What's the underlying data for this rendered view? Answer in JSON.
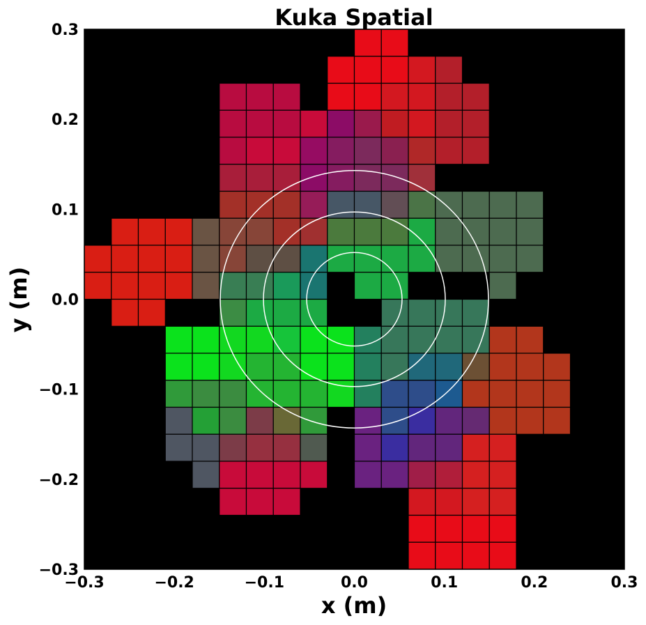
{
  "chart_data": {
    "type": "heatmap",
    "title": "Kuka Spatial",
    "xlabel": "x (m)",
    "ylabel": "y (m)",
    "xlim": [
      -0.3,
      0.3
    ],
    "ylim": [
      -0.3,
      0.3
    ],
    "x_ticks": [
      "−0.3",
      "−0.2",
      "−0.1",
      "0.0",
      "0.1",
      "0.2",
      "0.3"
    ],
    "y_ticks": [
      "0.3",
      "0.2",
      "0.1",
      "0.0",
      "−0.1",
      "−0.2",
      "−0.3"
    ],
    "background": "#000000",
    "cell_size_m": 0.03,
    "cells": [
      [
        0.0,
        0.27,
        "#e80c18"
      ],
      [
        0.03,
        0.27,
        "#e80c18"
      ],
      [
        -0.03,
        0.24,
        "#e80c18"
      ],
      [
        0.0,
        0.24,
        "#e80c18"
      ],
      [
        0.03,
        0.24,
        "#e80c18"
      ],
      [
        0.06,
        0.24,
        "#d31820"
      ],
      [
        0.09,
        0.24,
        "#b31f2a"
      ],
      [
        -0.15,
        0.21,
        "#b80c40"
      ],
      [
        -0.12,
        0.21,
        "#b80c40"
      ],
      [
        -0.09,
        0.21,
        "#b80c40"
      ],
      [
        -0.03,
        0.21,
        "#e80c18"
      ],
      [
        0.0,
        0.21,
        "#e80c18"
      ],
      [
        0.03,
        0.21,
        "#d31820"
      ],
      [
        0.06,
        0.21,
        "#d31820"
      ],
      [
        0.09,
        0.21,
        "#b31f2a"
      ],
      [
        0.12,
        0.21,
        "#b31f2a"
      ],
      [
        -0.15,
        0.18,
        "#b80c40"
      ],
      [
        -0.12,
        0.18,
        "#b80c40"
      ],
      [
        -0.09,
        0.18,
        "#b80c40"
      ],
      [
        -0.06,
        0.18,
        "#c80b3a"
      ],
      [
        -0.03,
        0.18,
        "#8c0c66"
      ],
      [
        0.0,
        0.18,
        "#9a1a4c"
      ],
      [
        0.03,
        0.18,
        "#c01c22"
      ],
      [
        0.06,
        0.18,
        "#d31820"
      ],
      [
        0.09,
        0.18,
        "#b31f2a"
      ],
      [
        0.12,
        0.18,
        "#b31f2a"
      ],
      [
        -0.15,
        0.15,
        "#b80c40"
      ],
      [
        -0.12,
        0.15,
        "#c80b3a"
      ],
      [
        -0.09,
        0.15,
        "#c80b3a"
      ],
      [
        -0.06,
        0.15,
        "#960c62"
      ],
      [
        -0.03,
        0.15,
        "#851c60"
      ],
      [
        0.0,
        0.15,
        "#7c2a5c"
      ],
      [
        0.03,
        0.15,
        "#8a2050"
      ],
      [
        0.06,
        0.15,
        "#b02828"
      ],
      [
        0.09,
        0.15,
        "#b31f2a"
      ],
      [
        0.12,
        0.15,
        "#b31f2a"
      ],
      [
        -0.15,
        0.12,
        "#a81e3a"
      ],
      [
        -0.12,
        0.12,
        "#a81e3a"
      ],
      [
        -0.09,
        0.12,
        "#a81e3a"
      ],
      [
        -0.06,
        0.12,
        "#8c0c66"
      ],
      [
        -0.03,
        0.12,
        "#851c60"
      ],
      [
        0.0,
        0.12,
        "#7c2a5c"
      ],
      [
        0.03,
        0.12,
        "#7c2a5c"
      ],
      [
        0.06,
        0.12,
        "#a0303a"
      ],
      [
        -0.15,
        0.09,
        "#a33028"
      ],
      [
        -0.12,
        0.09,
        "#a33028"
      ],
      [
        -0.09,
        0.09,
        "#a33028"
      ],
      [
        -0.06,
        0.09,
        "#961c58"
      ],
      [
        -0.03,
        0.09,
        "#475766"
      ],
      [
        0.0,
        0.09,
        "#475766"
      ],
      [
        0.03,
        0.09,
        "#624e55"
      ],
      [
        0.06,
        0.09,
        "#4b7447"
      ],
      [
        0.09,
        0.09,
        "#4d6b50"
      ],
      [
        0.12,
        0.09,
        "#4d6b50"
      ],
      [
        0.15,
        0.09,
        "#4d6b50"
      ],
      [
        0.18,
        0.09,
        "#4d6b50"
      ],
      [
        -0.27,
        0.06,
        "#d91e14"
      ],
      [
        -0.24,
        0.06,
        "#d91e14"
      ],
      [
        -0.21,
        0.06,
        "#d91e14"
      ],
      [
        -0.18,
        0.06,
        "#6a5444"
      ],
      [
        -0.15,
        0.06,
        "#874538"
      ],
      [
        -0.12,
        0.06,
        "#874538"
      ],
      [
        -0.09,
        0.06,
        "#a33028"
      ],
      [
        -0.06,
        0.06,
        "#a03030"
      ],
      [
        -0.03,
        0.06,
        "#4b7a3d"
      ],
      [
        0.0,
        0.06,
        "#4b7a3d"
      ],
      [
        0.03,
        0.06,
        "#4b7a3d"
      ],
      [
        0.06,
        0.06,
        "#1caa44"
      ],
      [
        0.09,
        0.06,
        "#4d6b50"
      ],
      [
        0.12,
        0.06,
        "#4d6b50"
      ],
      [
        0.15,
        0.06,
        "#4d6b50"
      ],
      [
        0.18,
        0.06,
        "#4d6b50"
      ],
      [
        -0.3,
        0.03,
        "#d91e14"
      ],
      [
        -0.27,
        0.03,
        "#d91e14"
      ],
      [
        -0.24,
        0.03,
        "#d91e14"
      ],
      [
        -0.21,
        0.03,
        "#d91e14"
      ],
      [
        -0.18,
        0.03,
        "#6a5444"
      ],
      [
        -0.15,
        0.03,
        "#874538"
      ],
      [
        -0.12,
        0.03,
        "#5e4f44"
      ],
      [
        -0.09,
        0.03,
        "#5e4f44"
      ],
      [
        -0.06,
        0.03,
        "#1a7570"
      ],
      [
        -0.03,
        0.03,
        "#1caa44"
      ],
      [
        0.0,
        0.03,
        "#1caa44"
      ],
      [
        0.03,
        0.03,
        "#1caa44"
      ],
      [
        0.06,
        0.03,
        "#1caa44"
      ],
      [
        0.09,
        0.03,
        "#4d6b50"
      ],
      [
        0.12,
        0.03,
        "#4d6b50"
      ],
      [
        0.15,
        0.03,
        "#4d6b50"
      ],
      [
        0.18,
        0.03,
        "#4d6b50"
      ],
      [
        -0.3,
        0.0,
        "#d91e14"
      ],
      [
        -0.27,
        0.0,
        "#d91e14"
      ],
      [
        -0.24,
        0.0,
        "#d91e14"
      ],
      [
        -0.21,
        0.0,
        "#d91e14"
      ],
      [
        -0.18,
        0.0,
        "#6a5444"
      ],
      [
        -0.15,
        0.0,
        "#397e54"
      ],
      [
        -0.12,
        0.0,
        "#397e54"
      ],
      [
        -0.09,
        0.0,
        "#1a9a5a"
      ],
      [
        -0.06,
        0.0,
        "#1a7570"
      ],
      [
        0.0,
        0.0,
        "#1caa44"
      ],
      [
        0.03,
        0.0,
        "#1caa44"
      ],
      [
        0.15,
        0.0,
        "#4d6b50"
      ],
      [
        -0.27,
        -0.03,
        "#d91e14"
      ],
      [
        -0.24,
        -0.03,
        "#d91e14"
      ],
      [
        -0.15,
        -0.03,
        "#3c8c44"
      ],
      [
        -0.12,
        -0.03,
        "#1caa44"
      ],
      [
        -0.09,
        -0.03,
        "#1caa44"
      ],
      [
        -0.06,
        -0.03,
        "#1caa44"
      ],
      [
        0.03,
        -0.03,
        "#37775a"
      ],
      [
        0.06,
        -0.03,
        "#37775a"
      ],
      [
        0.09,
        -0.03,
        "#37775a"
      ],
      [
        0.12,
        -0.03,
        "#37775a"
      ],
      [
        -0.21,
        -0.06,
        "#0be21c"
      ],
      [
        -0.18,
        -0.06,
        "#0be21c"
      ],
      [
        -0.15,
        -0.06,
        "#12d820"
      ],
      [
        -0.12,
        -0.06,
        "#12d820"
      ],
      [
        -0.09,
        -0.06,
        "#16c43a"
      ],
      [
        -0.06,
        -0.06,
        "#0be21c"
      ],
      [
        -0.03,
        -0.06,
        "#0be21c"
      ],
      [
        0.0,
        -0.06,
        "#23805e"
      ],
      [
        0.03,
        -0.06,
        "#37775a"
      ],
      [
        0.06,
        -0.06,
        "#37775a"
      ],
      [
        0.09,
        -0.06,
        "#37775a"
      ],
      [
        0.12,
        -0.06,
        "#37775a"
      ],
      [
        0.15,
        -0.06,
        "#b2361c"
      ],
      [
        0.18,
        -0.06,
        "#b2361c"
      ],
      [
        -0.21,
        -0.09,
        "#0be21c"
      ],
      [
        -0.18,
        -0.09,
        "#0be21c"
      ],
      [
        -0.15,
        -0.09,
        "#12d820"
      ],
      [
        -0.12,
        -0.09,
        "#24b432"
      ],
      [
        -0.09,
        -0.09,
        "#24b432"
      ],
      [
        -0.06,
        -0.09,
        "#0be21c"
      ],
      [
        -0.03,
        -0.09,
        "#0be21c"
      ],
      [
        0.0,
        -0.09,
        "#23805e"
      ],
      [
        0.03,
        -0.09,
        "#37775a"
      ],
      [
        0.06,
        -0.09,
        "#20687a"
      ],
      [
        0.09,
        -0.09,
        "#20687a"
      ],
      [
        0.12,
        -0.09,
        "#6c5034"
      ],
      [
        0.15,
        -0.09,
        "#b2361c"
      ],
      [
        0.18,
        -0.09,
        "#b2361c"
      ],
      [
        0.21,
        -0.09,
        "#b2361c"
      ],
      [
        -0.21,
        -0.12,
        "#309a3a"
      ],
      [
        -0.18,
        -0.12,
        "#3b8c40"
      ],
      [
        -0.15,
        -0.12,
        "#3b8c40"
      ],
      [
        -0.12,
        -0.12,
        "#24b432"
      ],
      [
        -0.09,
        -0.12,
        "#24b432"
      ],
      [
        -0.06,
        -0.12,
        "#24b432"
      ],
      [
        -0.03,
        -0.12,
        "#12d820"
      ],
      [
        0.0,
        -0.12,
        "#23805e"
      ],
      [
        0.03,
        -0.12,
        "#2e4d8a"
      ],
      [
        0.06,
        -0.12,
        "#2e4d8a"
      ],
      [
        0.09,
        -0.12,
        "#1d5a90"
      ],
      [
        0.12,
        -0.12,
        "#b2361c"
      ],
      [
        0.15,
        -0.12,
        "#b2361c"
      ],
      [
        0.18,
        -0.12,
        "#b2361c"
      ],
      [
        0.21,
        -0.12,
        "#b2361c"
      ],
      [
        -0.21,
        -0.15,
        "#4f5662"
      ],
      [
        -0.18,
        -0.15,
        "#24a036"
      ],
      [
        -0.15,
        -0.15,
        "#3b8c40"
      ],
      [
        -0.12,
        -0.15,
        "#7c3c48"
      ],
      [
        -0.09,
        -0.15,
        "#696836"
      ],
      [
        -0.06,
        -0.15,
        "#309a3a"
      ],
      [
        0.0,
        -0.15,
        "#6a2280"
      ],
      [
        0.03,
        -0.15,
        "#2e4d8a"
      ],
      [
        0.06,
        -0.15,
        "#3a2da0"
      ],
      [
        0.09,
        -0.15,
        "#62267c"
      ],
      [
        0.12,
        -0.15,
        "#652a72"
      ],
      [
        0.15,
        -0.15,
        "#b2361c"
      ],
      [
        0.18,
        -0.15,
        "#b2361c"
      ],
      [
        0.21,
        -0.15,
        "#b2361c"
      ],
      [
        -0.21,
        -0.18,
        "#4f5662"
      ],
      [
        -0.18,
        -0.18,
        "#4f5662"
      ],
      [
        -0.15,
        -0.18,
        "#7c3c48"
      ],
      [
        -0.12,
        -0.18,
        "#963040"
      ],
      [
        -0.09,
        -0.18,
        "#963040"
      ],
      [
        -0.06,
        -0.18,
        "#505a50"
      ],
      [
        0.0,
        -0.18,
        "#6a2280"
      ],
      [
        0.03,
        -0.18,
        "#3a2da0"
      ],
      [
        0.06,
        -0.18,
        "#62267c"
      ],
      [
        0.09,
        -0.18,
        "#62267c"
      ],
      [
        0.12,
        -0.18,
        "#d52020"
      ],
      [
        0.15,
        -0.18,
        "#d52020"
      ],
      [
        -0.18,
        -0.21,
        "#4f5662"
      ],
      [
        -0.15,
        -0.21,
        "#c80b3a"
      ],
      [
        -0.12,
        -0.21,
        "#c80b3a"
      ],
      [
        -0.09,
        -0.21,
        "#c80b3a"
      ],
      [
        -0.06,
        -0.21,
        "#c80b3a"
      ],
      [
        0.0,
        -0.21,
        "#6a2280"
      ],
      [
        0.03,
        -0.21,
        "#6a2280"
      ],
      [
        0.06,
        -0.21,
        "#a01e48"
      ],
      [
        0.09,
        -0.21,
        "#b01e3a"
      ],
      [
        0.12,
        -0.21,
        "#d52020"
      ],
      [
        0.15,
        -0.21,
        "#d52020"
      ],
      [
        -0.15,
        -0.24,
        "#c80b3a"
      ],
      [
        -0.12,
        -0.24,
        "#c80b3a"
      ],
      [
        -0.09,
        -0.24,
        "#c80b3a"
      ],
      [
        0.06,
        -0.24,
        "#d31820"
      ],
      [
        0.09,
        -0.24,
        "#d31820"
      ],
      [
        0.12,
        -0.24,
        "#d52020"
      ],
      [
        0.15,
        -0.24,
        "#d52020"
      ],
      [
        0.06,
        -0.27,
        "#e80c18"
      ],
      [
        0.09,
        -0.27,
        "#e80c18"
      ],
      [
        0.12,
        -0.27,
        "#e80c18"
      ],
      [
        0.15,
        -0.27,
        "#e80c18"
      ],
      [
        0.06,
        -0.3,
        "#e80c18"
      ],
      [
        0.09,
        -0.3,
        "#e80c18"
      ],
      [
        0.12,
        -0.3,
        "#e80c18"
      ],
      [
        0.15,
        -0.3,
        "#e80c18"
      ]
    ],
    "ellipses": [
      {
        "cx": 0.0,
        "cy": 0.0,
        "rx": 0.053,
        "ry": 0.052,
        "angle_deg": 0,
        "color": "#ffffff"
      },
      {
        "cx": 0.0,
        "cy": 0.0,
        "rx": 0.101,
        "ry": 0.097,
        "angle_deg": 0,
        "color": "#ffffff"
      },
      {
        "cx": 0.0,
        "cy": 0.0,
        "rx": 0.149,
        "ry": 0.143,
        "angle_deg": 0,
        "color": "#ffffff"
      }
    ]
  }
}
